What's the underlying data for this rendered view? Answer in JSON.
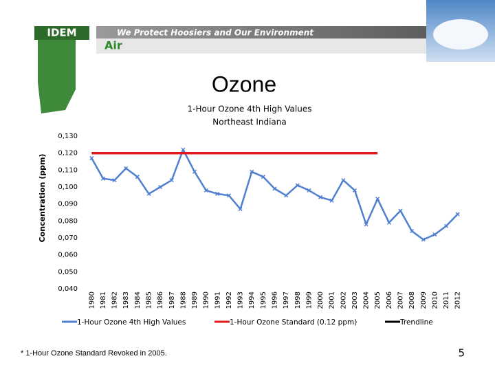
{
  "header": {
    "logo": "IDEM",
    "tagline": "We Protect Hoosiers and Our Environment",
    "section": "Air"
  },
  "slide_title": "Ozone",
  "footnote": "* 1-Hour Ozone Standard Revoked in 2005.",
  "page_number": "5",
  "chart_data": {
    "type": "line",
    "title": "1-Hour Ozone 4th High Values",
    "subtitle": "Northeast Indiana",
    "y_label": "Concentration (ppm)",
    "categories": [
      "1980",
      "1981",
      "1982",
      "1983",
      "1984",
      "1985",
      "1986",
      "1987",
      "1988",
      "1989",
      "1990",
      "1991",
      "1992",
      "1993",
      "1994",
      "1995",
      "1996",
      "1997",
      "1998",
      "1999",
      "2000",
      "2001",
      "2002",
      "2003",
      "2004",
      "2005",
      "2006",
      "2007",
      "2008",
      "2009",
      "2010",
      "2011",
      "2012"
    ],
    "series": [
      {
        "name": "1-Hour Ozone  4th High Values",
        "color": "#4f7fd0",
        "values": [
          0.117,
          0.105,
          0.104,
          0.111,
          0.106,
          0.096,
          0.1,
          0.104,
          0.122,
          0.109,
          0.098,
          0.096,
          0.095,
          0.087,
          0.109,
          0.106,
          0.099,
          0.095,
          0.101,
          0.098,
          0.094,
          0.092,
          0.104,
          0.098,
          0.078,
          0.093,
          0.079,
          0.086,
          0.074,
          0.069,
          0.072,
          0.077,
          0.084
        ]
      },
      {
        "name": "1-Hour Ozone Standard (0.12 ppm)",
        "color": "#e0191f",
        "values": [
          0.12,
          0.12,
          0.12,
          0.12,
          0.12,
          0.12,
          0.12,
          0.12,
          0.12,
          0.12,
          0.12,
          0.12,
          0.12,
          0.12,
          0.12,
          0.12,
          0.12,
          0.12,
          0.12,
          0.12,
          0.12,
          0.12,
          0.12,
          0.12,
          0.12,
          0.12,
          null,
          null,
          null,
          null,
          null,
          null,
          null
        ]
      },
      {
        "name": "Trendline",
        "color": "#000000",
        "values": [
          null,
          null,
          null,
          null,
          null,
          null,
          null,
          null,
          null,
          null,
          null,
          null,
          null,
          null,
          null,
          null,
          null,
          null,
          null,
          null,
          null,
          null,
          null,
          null,
          null,
          null,
          null,
          null,
          null,
          null,
          null,
          null,
          null
        ]
      }
    ],
    "ylim": [
      0.04,
      0.13
    ],
    "yticks": [
      {
        "value": 0.04,
        "label": "0,040"
      },
      {
        "value": 0.05,
        "label": "0,050"
      },
      {
        "value": 0.06,
        "label": "0,060"
      },
      {
        "value": 0.07,
        "label": "0,070"
      },
      {
        "value": 0.08,
        "label": "0,080"
      },
      {
        "value": 0.09,
        "label": "0,090"
      },
      {
        "value": 0.1,
        "label": "0,100"
      },
      {
        "value": 0.11,
        "label": "0,110"
      },
      {
        "value": 0.12,
        "label": "0,120"
      },
      {
        "value": 0.13,
        "label": "0,130"
      }
    ],
    "grid": false
  }
}
